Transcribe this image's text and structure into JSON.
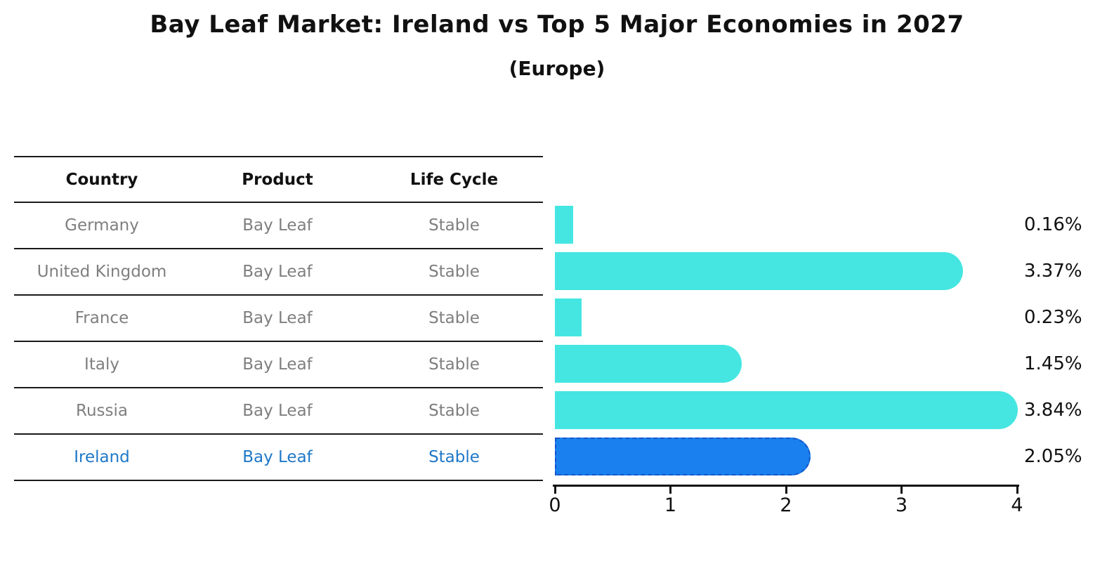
{
  "title": "Bay Leaf Market: Ireland vs Top 5 Major Economies in 2027",
  "subtitle": "(Europe)",
  "table": {
    "headers": [
      "Country",
      "Product",
      "Life Cycle"
    ],
    "rows": [
      {
        "country": "Germany",
        "product": "Bay Leaf",
        "life_cycle": "Stable",
        "highlight": false
      },
      {
        "country": "United Kingdom",
        "product": "Bay Leaf",
        "life_cycle": "Stable",
        "highlight": false
      },
      {
        "country": "France",
        "product": "Bay Leaf",
        "life_cycle": "Stable",
        "highlight": false
      },
      {
        "country": "Italy",
        "product": "Bay Leaf",
        "life_cycle": "Stable",
        "highlight": false
      },
      {
        "country": "Russia",
        "product": "Bay Leaf",
        "life_cycle": "Stable",
        "highlight": false
      },
      {
        "country": "Ireland",
        "product": "Bay Leaf",
        "life_cycle": "Stable",
        "highlight": true
      }
    ]
  },
  "chart_data": {
    "type": "bar",
    "orientation": "horizontal",
    "title": "Bay Leaf Market: Ireland vs Top 5 Major Economies in 2027",
    "subtitle": "(Europe)",
    "categories": [
      "Germany",
      "United Kingdom",
      "France",
      "Italy",
      "Russia",
      "Ireland"
    ],
    "values": [
      0.16,
      3.37,
      0.23,
      1.45,
      3.84,
      2.05
    ],
    "value_labels": [
      "0.16%",
      "3.37%",
      "0.23%",
      "1.45%",
      "3.84%",
      "2.05%"
    ],
    "xlim": [
      0,
      4
    ],
    "x_ticks": [
      "0",
      "1",
      "2",
      "3",
      "4"
    ],
    "grid": false,
    "legend": false,
    "bar_color": "#45E6E2",
    "highlight_index": 5,
    "highlight_bar_color": "#1A80F0",
    "highlight_bar_border_color": "#1456C8",
    "highlight_text_color": "#1F78C8",
    "axis_text_color": "#111111",
    "muted_text_color": "#7F7F7F"
  }
}
